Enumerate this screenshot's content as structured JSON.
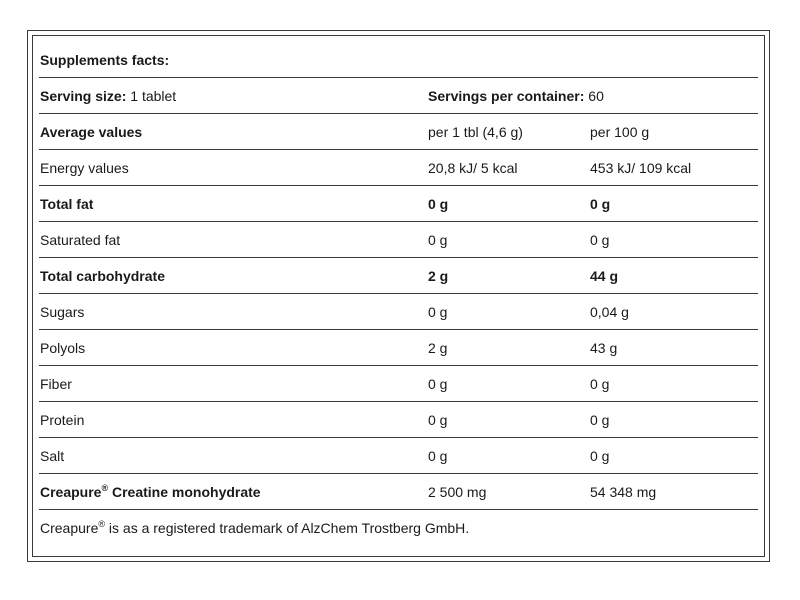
{
  "title": "Supplements facts:",
  "serving": {
    "size_label": "Serving size:",
    "size_value": "1 tablet",
    "per_container_label": "Servings per container:",
    "per_container_value": "60"
  },
  "header": {
    "label": "Average values",
    "col1": "per 1 tbl (4,6 g)",
    "col2": "per 100 g"
  },
  "rows": [
    {
      "label": "Energy values",
      "v1": "20,8 kJ/ 5 kcal",
      "v2": "453 kJ/ 109 kcal"
    },
    {
      "label": "Total fat",
      "v1": "0 g",
      "v2": "0 g"
    },
    {
      "label": "Saturated fat",
      "v1": "0 g",
      "v2": "0 g"
    },
    {
      "label": "Total carbohydrate",
      "v1": "2 g",
      "v2": "44 g"
    },
    {
      "label": "Sugars",
      "v1": "0 g",
      "v2": "0,04 g"
    },
    {
      "label": "Polyols",
      "v1": "2 g",
      "v2": "43 g"
    },
    {
      "label": "Fiber",
      "v1": "0 g",
      "v2": "0 g"
    },
    {
      "label": "Protein",
      "v1": "0 g",
      "v2": "0 g"
    },
    {
      "label": "Salt",
      "v1": "0 g",
      "v2": "0 g"
    }
  ],
  "creatine": {
    "brand": "Creapure",
    "reg_mark": "®",
    "name": "Creatine monohydrate",
    "v1": "2 500 mg",
    "v2": "54 348 mg"
  },
  "footnote": {
    "brand": "Creapure",
    "reg_mark": "®",
    "text": "is as a registered trademark of AlzChem Trostberg GmbH."
  }
}
